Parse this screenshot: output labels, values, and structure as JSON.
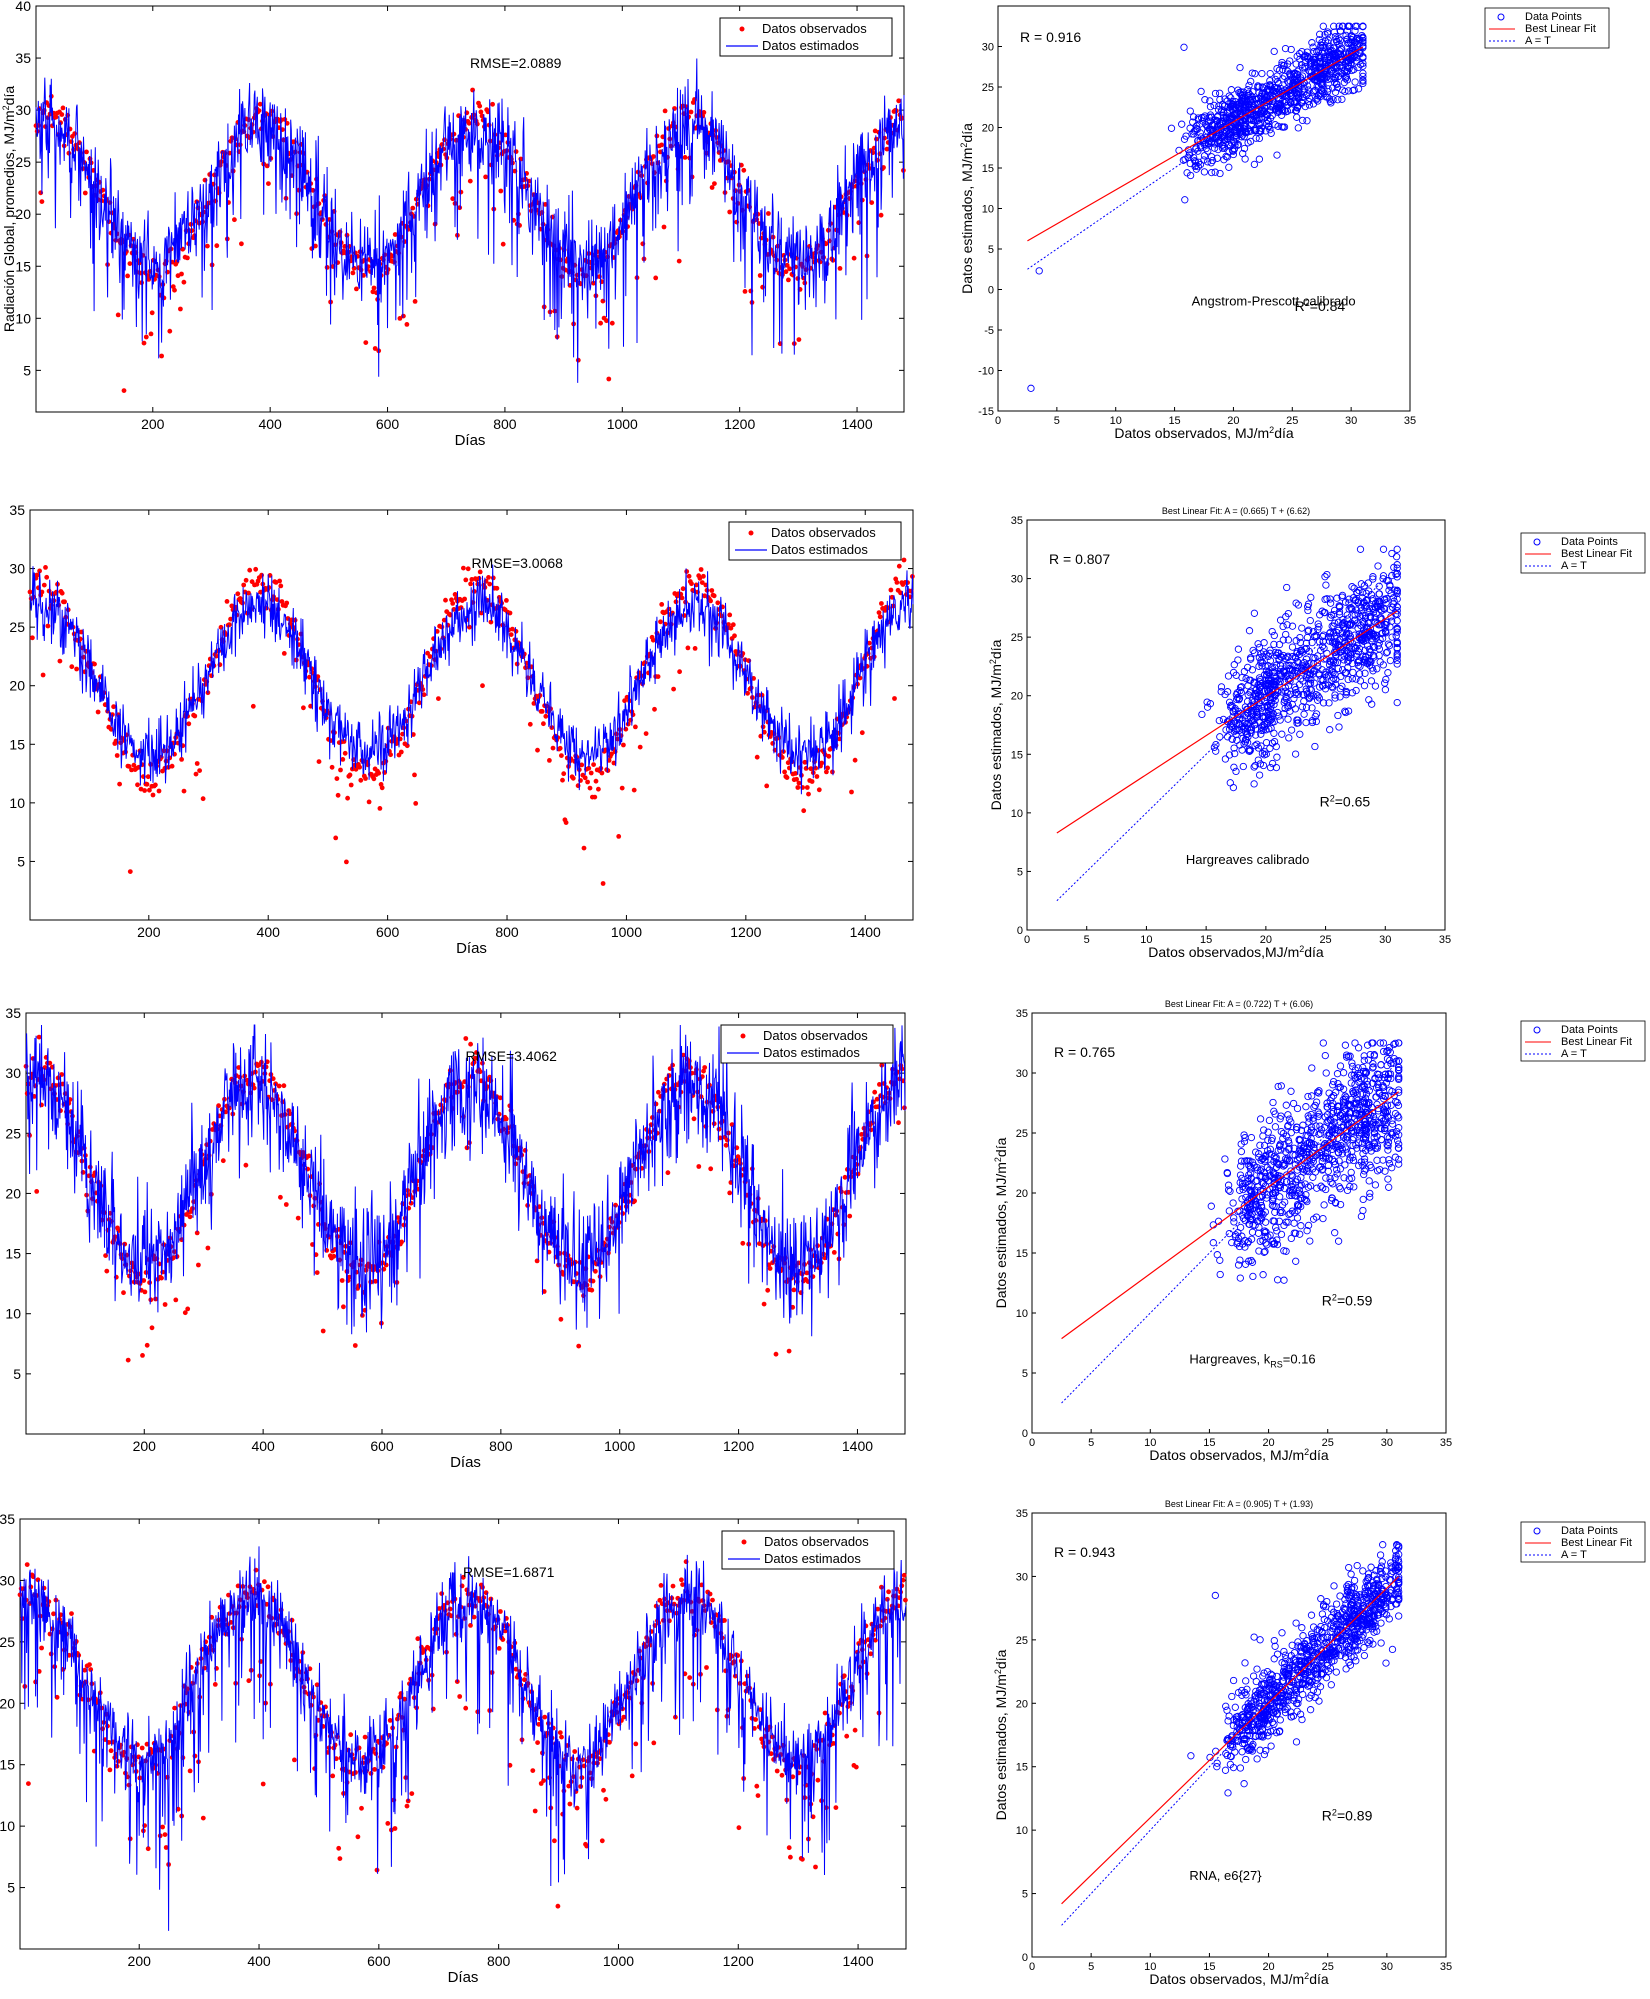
{
  "chart_data": [
    {
      "type": "line",
      "id": "ts1",
      "ylabel": "Radiación Global, promedios, MJ/m²día",
      "xlabel": "Días",
      "xlim": [
        1,
        1480
      ],
      "ylim": [
        1,
        40
      ],
      "xticks": [
        200,
        400,
        600,
        800,
        1000,
        1200,
        1400
      ],
      "yticks": [
        5,
        10,
        15,
        20,
        25,
        30,
        35,
        40
      ],
      "annotation": "RMSE=2.0889",
      "legend": {
        "position": "top-right",
        "observed": "Datos observados",
        "estimated": "Datos estimados"
      },
      "series_model": {
        "name": "annual-cycle",
        "mean": 22,
        "amplitude": 6.5,
        "period_days": 365,
        "peak_day": 20,
        "noise": 2.2,
        "dip_rate": 0.14,
        "dip_depth": 10,
        "obs_bias": 0.8
      }
    },
    {
      "type": "scatter",
      "id": "sc1",
      "title": "",
      "xlabel": "Datos observados, MJ/m²día",
      "ylabel": "Datos estimados, MJ/m²día",
      "xlim": [
        0,
        35
      ],
      "ylim": [
        -15,
        35
      ],
      "xticks": [
        0,
        5,
        10,
        15,
        20,
        25,
        30,
        35
      ],
      "yticks": [
        -15,
        -10,
        -5,
        0,
        5,
        10,
        15,
        20,
        25,
        30
      ],
      "r_text": "R = 0.916",
      "method_text": "Angstrom-Prescott calibrado",
      "r2_text": "R²=0.84",
      "fit": {
        "slope": 0.84,
        "intercept": 3.9
      },
      "identity": [
        2.5,
        31
      ],
      "legend": {
        "points": "Data Points",
        "fit": "Best Linear Fit",
        "identity": "A = T"
      },
      "series_model": {
        "n": 950,
        "spread": 2.2,
        "outliers": [
          [
            2.8,
            -12.2
          ],
          [
            3.5,
            2.3
          ],
          [
            15.8,
            29.9
          ]
        ]
      }
    },
    {
      "type": "line",
      "id": "ts2",
      "ylabel": "",
      "xlabel": "Días",
      "xlim": [
        1,
        1480
      ],
      "ylim": [
        0,
        35
      ],
      "xticks": [
        200,
        400,
        600,
        800,
        1000,
        1200,
        1400
      ],
      "yticks": [
        5,
        10,
        15,
        20,
        25,
        30,
        35
      ],
      "annotation": "RMSE=3.0068",
      "legend": {
        "position": "top-right",
        "observed": "Datos observados",
        "estimated": "Datos estimados"
      },
      "series_model": {
        "name": "smooth-estimate",
        "mean": 20.5,
        "amplitude": 6.3,
        "period_days": 365,
        "peak_day": 20,
        "noise": 1.4,
        "dip_rate": 0.0,
        "dip_depth": 0,
        "obs_bias": 1.8
      }
    },
    {
      "type": "scatter",
      "id": "sc2",
      "title": "Best Linear Fit:  A = (0.665) T + (6.62)",
      "xlabel": "Datos observados,MJ/m²día",
      "ylabel": "Datos estimados, MJ/m²día",
      "xlim": [
        0,
        35
      ],
      "ylim": [
        0,
        35
      ],
      "xticks": [
        0,
        5,
        10,
        15,
        20,
        25,
        30,
        35
      ],
      "yticks": [
        0,
        5,
        10,
        15,
        20,
        25,
        30,
        35
      ],
      "r_text": "R = 0.807",
      "method_text": "Hargreaves calibrado",
      "r2_text": "R²=0.65",
      "fit": {
        "slope": 0.665,
        "intercept": 6.62
      },
      "identity": [
        2.5,
        31
      ],
      "legend": {
        "points": "Data Points",
        "fit": "Best Linear Fit",
        "identity": "A = T"
      },
      "series_model": {
        "n": 950,
        "spread": 2.6,
        "outliers": []
      }
    },
    {
      "type": "line",
      "id": "ts3",
      "ylabel": "",
      "xlabel": "Días",
      "xlim": [
        1,
        1480
      ],
      "ylim": [
        0,
        35
      ],
      "xticks": [
        200,
        400,
        600,
        800,
        1000,
        1200,
        1400
      ],
      "yticks": [
        5,
        10,
        15,
        20,
        25,
        30,
        35
      ],
      "annotation": "RMSE=3.4062",
      "legend": {
        "position": "top-right",
        "observed": "Datos observados",
        "estimated": "Datos estimados"
      },
      "series_model": {
        "name": "noisy-estimate",
        "mean": 21.5,
        "amplitude": 7.5,
        "period_days": 365,
        "peak_day": 20,
        "noise": 2.4,
        "dip_rate": 0.05,
        "dip_depth": 5,
        "obs_bias": 1.0
      }
    },
    {
      "type": "scatter",
      "id": "sc3",
      "title": "Best Linear Fit:  A = (0.722) T + (6.06)",
      "xlabel": "Datos observados, MJ/m²día",
      "ylabel": "Datos estimados, MJ/m²día",
      "xlim": [
        0,
        35
      ],
      "ylim": [
        0,
        35
      ],
      "xticks": [
        0,
        5,
        10,
        15,
        20,
        25,
        30,
        35
      ],
      "yticks": [
        0,
        5,
        10,
        15,
        20,
        25,
        30,
        35
      ],
      "r_text": "R = 0.765",
      "method_text": "Hargreaves, k",
      "method_sub": "RS",
      "method_tail": "=0.16",
      "r2_text": "R²=0.59",
      "fit": {
        "slope": 0.722,
        "intercept": 6.06
      },
      "identity": [
        2.5,
        31
      ],
      "legend": {
        "points": "Data Points",
        "fit": "Best Linear Fit",
        "identity": "A = T"
      },
      "series_model": {
        "n": 950,
        "spread": 3.0,
        "outliers": []
      }
    },
    {
      "type": "line",
      "id": "ts4",
      "ylabel": "",
      "xlabel": "Días",
      "xlim": [
        1,
        1480
      ],
      "ylim": [
        0,
        35
      ],
      "xticks": [
        200,
        400,
        600,
        800,
        1000,
        1200,
        1400
      ],
      "yticks": [
        5,
        10,
        15,
        20,
        25,
        30,
        35
      ],
      "annotation": "RMSE=1.6871",
      "legend": {
        "position": "top-right",
        "observed": "Datos observados",
        "estimated": "Datos estimados"
      },
      "series_model": {
        "name": "ann-estimate",
        "mean": 22,
        "amplitude": 6.5,
        "period_days": 365,
        "peak_day": 20,
        "noise": 1.6,
        "dip_rate": 0.16,
        "dip_depth": 11,
        "obs_bias": 0.6
      }
    },
    {
      "type": "scatter",
      "id": "sc4",
      "title": "Best Linear Fit:  A = (0.905) T + (1.93)",
      "xlabel": "Datos observados, MJ/m²día",
      "ylabel": "Datos estimados, MJ/m²día",
      "xlim": [
        0,
        35
      ],
      "ylim": [
        0,
        35
      ],
      "xticks": [
        0,
        5,
        10,
        15,
        20,
        25,
        30,
        35
      ],
      "yticks": [
        0,
        5,
        10,
        15,
        20,
        25,
        30,
        35
      ],
      "r_text": "R = 0.943",
      "method_text": "RNA, e6{27}",
      "r2_text": "R²=0.89",
      "fit": {
        "slope": 0.905,
        "intercept": 1.93
      },
      "identity": [
        2.5,
        31
      ],
      "legend": {
        "points": "Data Points",
        "fit": "Best Linear Fit",
        "identity": "A = T"
      },
      "series_model": {
        "n": 950,
        "spread": 1.6,
        "outliers": [
          [
            15.5,
            28.5
          ]
        ]
      }
    }
  ],
  "colors": {
    "observed": "#ff0000",
    "estimated": "#0000ff",
    "fit": "#ff0000",
    "identity": "#0000ff",
    "axis": "#000000"
  }
}
